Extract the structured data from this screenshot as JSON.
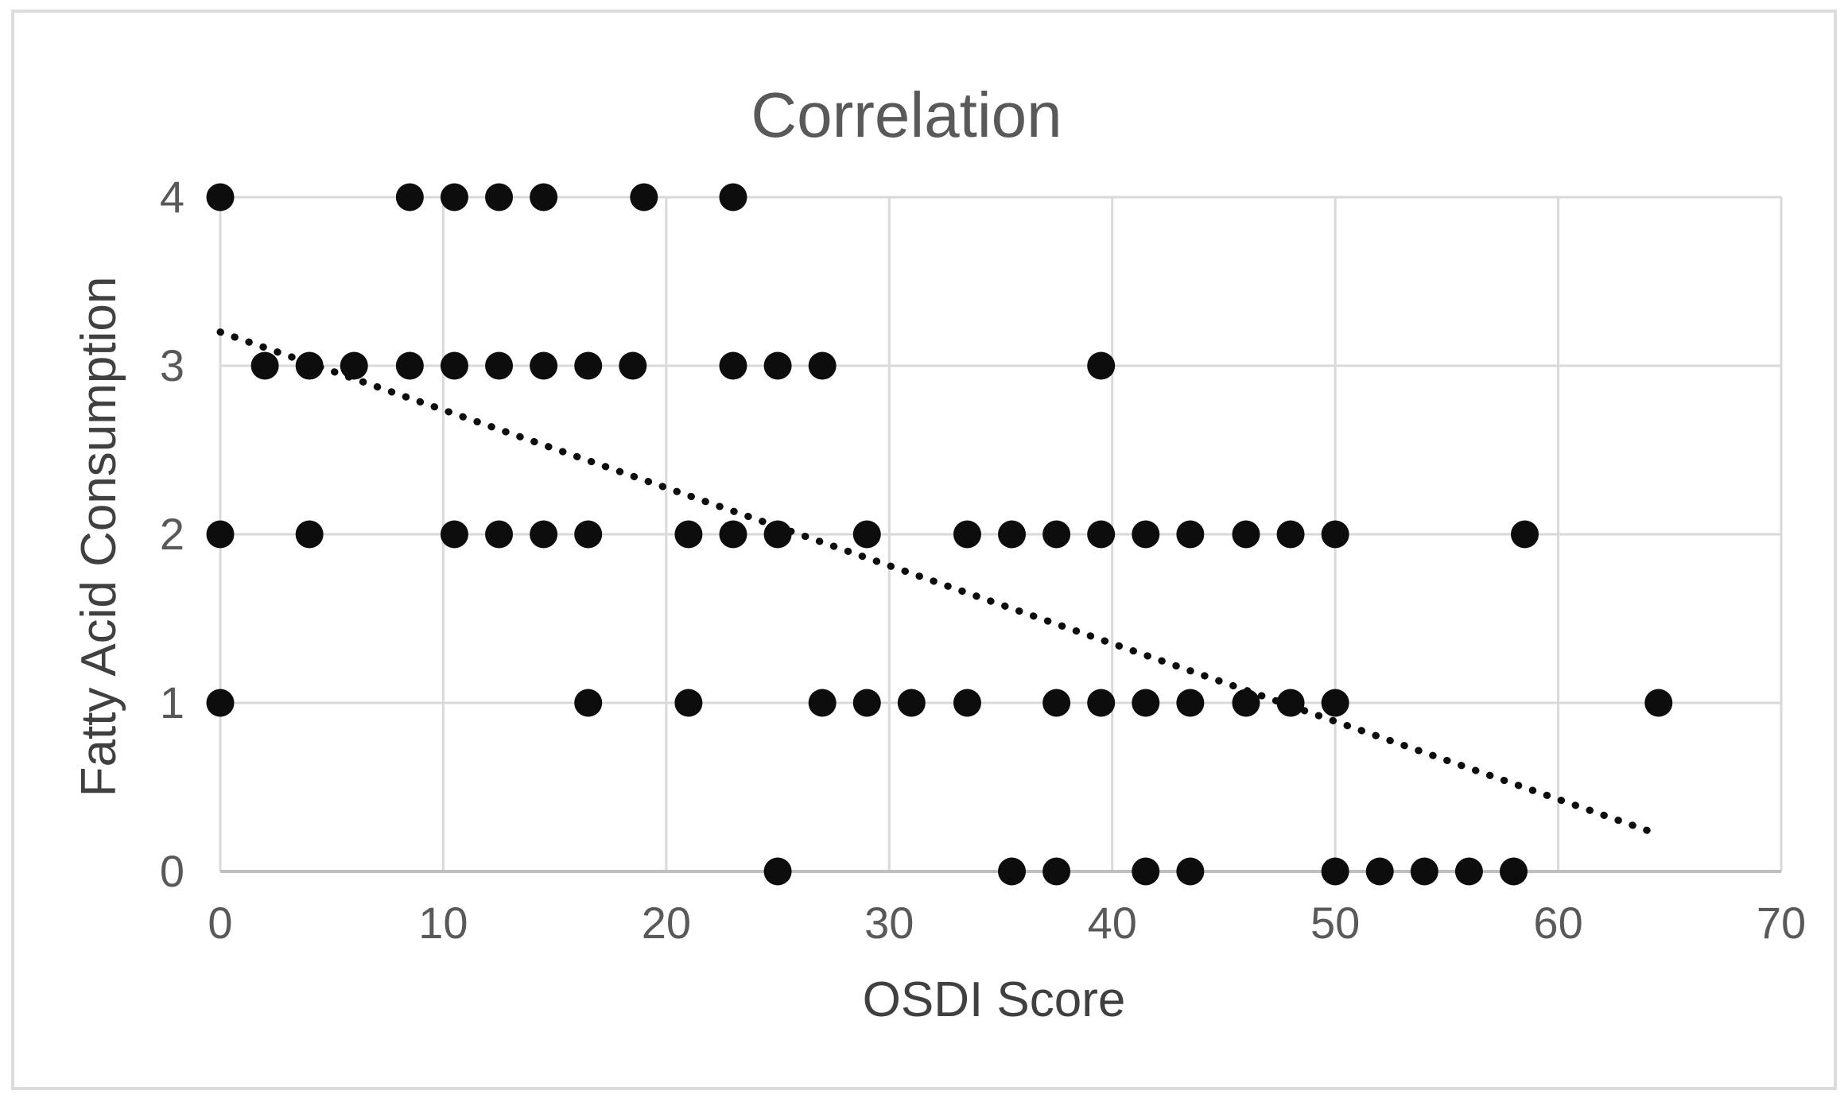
{
  "chart_data": {
    "type": "scatter",
    "title": "Correlation",
    "xlabel": "OSDI Score",
    "ylabel": "Fatty Acid Consumption",
    "xlim": [
      0,
      70
    ],
    "ylim": [
      0,
      4
    ],
    "xticks": [
      0,
      10,
      20,
      30,
      40,
      50,
      60,
      70
    ],
    "yticks": [
      0,
      1,
      2,
      3,
      4
    ],
    "grid": true,
    "legend": "none",
    "points": [
      {
        "x": 0,
        "y": 4
      },
      {
        "x": 8.5,
        "y": 4
      },
      {
        "x": 10.5,
        "y": 4
      },
      {
        "x": 12.5,
        "y": 4
      },
      {
        "x": 14.5,
        "y": 4
      },
      {
        "x": 19,
        "y": 4
      },
      {
        "x": 23,
        "y": 4
      },
      {
        "x": 2,
        "y": 3
      },
      {
        "x": 4,
        "y": 3
      },
      {
        "x": 6,
        "y": 3
      },
      {
        "x": 8.5,
        "y": 3
      },
      {
        "x": 10.5,
        "y": 3
      },
      {
        "x": 12.5,
        "y": 3
      },
      {
        "x": 14.5,
        "y": 3
      },
      {
        "x": 16.5,
        "y": 3
      },
      {
        "x": 18.5,
        "y": 3
      },
      {
        "x": 23,
        "y": 3
      },
      {
        "x": 25,
        "y": 3
      },
      {
        "x": 27,
        "y": 3
      },
      {
        "x": 39.5,
        "y": 3
      },
      {
        "x": 0,
        "y": 2
      },
      {
        "x": 4,
        "y": 2
      },
      {
        "x": 10.5,
        "y": 2
      },
      {
        "x": 12.5,
        "y": 2
      },
      {
        "x": 14.5,
        "y": 2
      },
      {
        "x": 16.5,
        "y": 2
      },
      {
        "x": 21,
        "y": 2
      },
      {
        "x": 23,
        "y": 2
      },
      {
        "x": 25,
        "y": 2
      },
      {
        "x": 29,
        "y": 2
      },
      {
        "x": 33.5,
        "y": 2
      },
      {
        "x": 35.5,
        "y": 2
      },
      {
        "x": 37.5,
        "y": 2
      },
      {
        "x": 39.5,
        "y": 2
      },
      {
        "x": 41.5,
        "y": 2
      },
      {
        "x": 43.5,
        "y": 2
      },
      {
        "x": 46,
        "y": 2
      },
      {
        "x": 48,
        "y": 2
      },
      {
        "x": 50,
        "y": 2
      },
      {
        "x": 58.5,
        "y": 2
      },
      {
        "x": 0,
        "y": 1
      },
      {
        "x": 16.5,
        "y": 1
      },
      {
        "x": 21,
        "y": 1
      },
      {
        "x": 27,
        "y": 1
      },
      {
        "x": 29,
        "y": 1
      },
      {
        "x": 31,
        "y": 1
      },
      {
        "x": 33.5,
        "y": 1
      },
      {
        "x": 37.5,
        "y": 1
      },
      {
        "x": 39.5,
        "y": 1
      },
      {
        "x": 41.5,
        "y": 1
      },
      {
        "x": 43.5,
        "y": 1
      },
      {
        "x": 46,
        "y": 1
      },
      {
        "x": 48,
        "y": 1
      },
      {
        "x": 50,
        "y": 1
      },
      {
        "x": 64.5,
        "y": 1
      },
      {
        "x": 25,
        "y": 0
      },
      {
        "x": 35.5,
        "y": 0
      },
      {
        "x": 37.5,
        "y": 0
      },
      {
        "x": 41.5,
        "y": 0
      },
      {
        "x": 43.5,
        "y": 0
      },
      {
        "x": 50,
        "y": 0
      },
      {
        "x": 52,
        "y": 0
      },
      {
        "x": 54,
        "y": 0
      },
      {
        "x": 56,
        "y": 0
      },
      {
        "x": 58,
        "y": 0
      }
    ],
    "trendline": {
      "style": "dotted",
      "x_start": 0,
      "y_start": 3.2,
      "x_end": 64.5,
      "y_end": 0.22
    },
    "colors": {
      "marker": "#0d0d0d",
      "trendline": "#0d0d0d",
      "gridline": "#d9d9d9",
      "axis_line": "#bfbfbf",
      "tick_text": "#595959",
      "title_text": "#595959",
      "axis_title_text": "#404040",
      "border": "#dcdcdc",
      "background": "#ffffff"
    }
  }
}
